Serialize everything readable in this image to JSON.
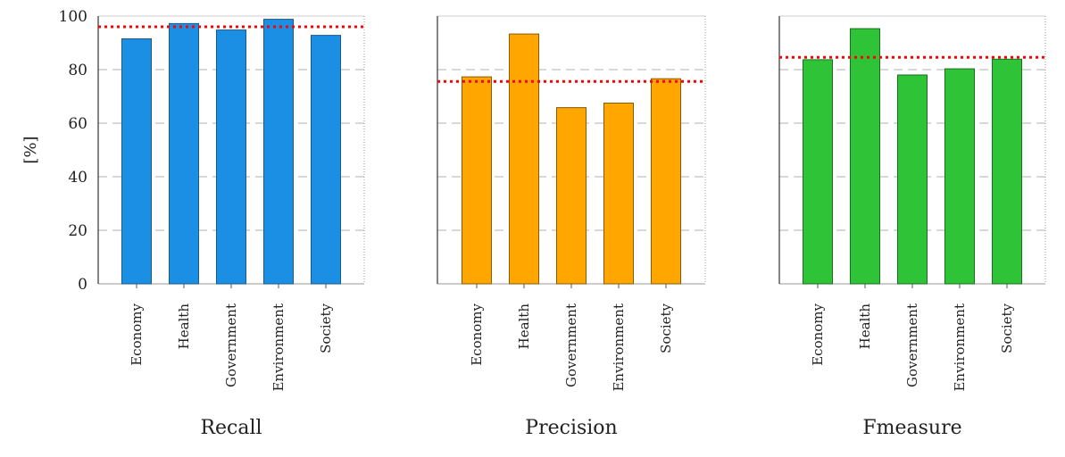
{
  "ylabel": "[%]",
  "chart_data": [
    {
      "type": "bar",
      "title": "Recall",
      "categories": [
        "Economy",
        "Health",
        "Government",
        "Environment",
        "Society"
      ],
      "values": [
        91.5,
        97.2,
        94.8,
        98.8,
        92.8
      ],
      "reference_line": 96.0,
      "ylim": [
        0,
        100
      ],
      "yticks": [
        0,
        20,
        40,
        60,
        80,
        100
      ],
      "color": "#1a8fe3",
      "edge_color": "#1a5a8c",
      "grid": true
    },
    {
      "type": "bar",
      "title": "Precision",
      "categories": [
        "Economy",
        "Health",
        "Government",
        "Environment",
        "Society"
      ],
      "values": [
        77.3,
        93.3,
        65.8,
        67.5,
        76.6
      ],
      "reference_line": 75.6,
      "ylim": [
        0,
        100
      ],
      "color": "#ffa600",
      "edge_color": "#8a5a00",
      "grid": true
    },
    {
      "type": "bar",
      "title": "Fmeasure",
      "categories": [
        "Economy",
        "Health",
        "Government",
        "Environment",
        "Society"
      ],
      "values": [
        83.7,
        95.3,
        78.0,
        80.3,
        83.9
      ],
      "reference_line": 84.6,
      "ylim": [
        0,
        100
      ],
      "color": "#2fc437",
      "edge_color": "#1a6e1f",
      "grid": true
    }
  ],
  "reference_line_color": "#ff0000"
}
